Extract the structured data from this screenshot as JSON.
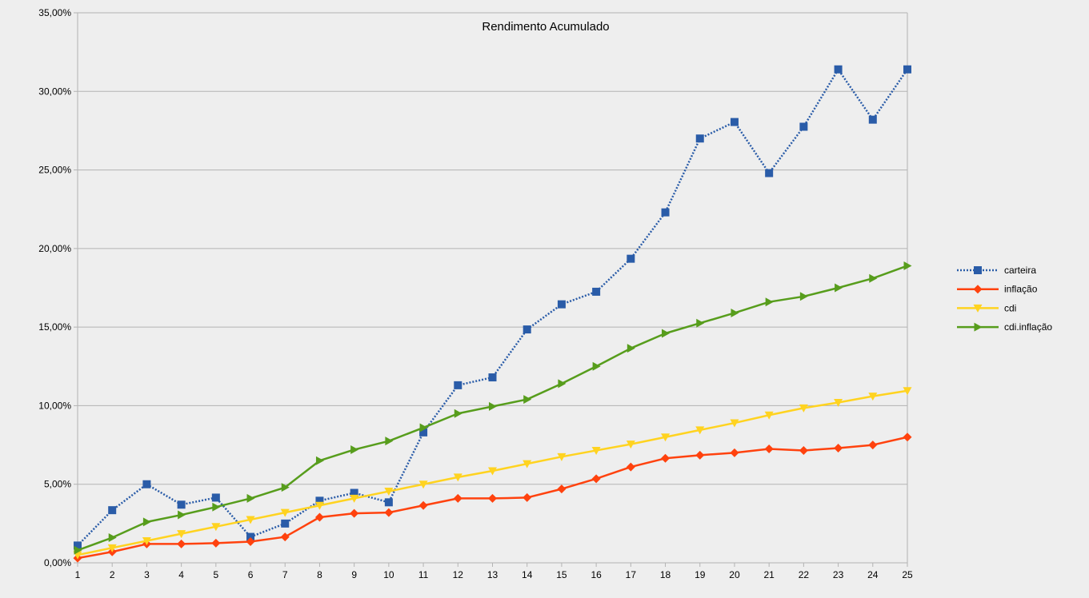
{
  "chart_data": {
    "type": "line",
    "title": "Rendimento Acumulado",
    "xlabel": "",
    "ylabel": "",
    "x": [
      "1",
      "2",
      "3",
      "4",
      "5",
      "6",
      "7",
      "8",
      "9",
      "10",
      "11",
      "12",
      "13",
      "14",
      "15",
      "16",
      "17",
      "18",
      "19",
      "20",
      "21",
      "22",
      "23",
      "24",
      "25"
    ],
    "ylim": [
      0,
      35
    ],
    "yticks": [
      "0,00%",
      "5,00%",
      "10,00%",
      "15,00%",
      "20,00%",
      "25,00%",
      "30,00%",
      "35,00%"
    ],
    "grid": true,
    "legend_position": "right",
    "series": [
      {
        "name": "carteira",
        "color": "#2a5ca8",
        "line_style": "dotted",
        "marker": "square",
        "values": [
          1.1,
          3.35,
          5.0,
          3.7,
          4.15,
          1.65,
          2.5,
          3.95,
          4.45,
          3.85,
          8.3,
          11.3,
          11.8,
          14.85,
          16.45,
          17.25,
          19.35,
          22.3,
          27.0,
          28.05,
          24.8,
          27.75,
          31.4,
          28.2,
          31.4
        ]
      },
      {
        "name": "inflação",
        "color": "#ff420e",
        "line_style": "solid",
        "marker": "diamond",
        "values": [
          0.3,
          0.7,
          1.2,
          1.2,
          1.25,
          1.35,
          1.65,
          2.9,
          3.15,
          3.2,
          3.65,
          4.1,
          4.1,
          4.15,
          4.7,
          5.35,
          6.1,
          6.65,
          6.85,
          7.0,
          7.25,
          7.15,
          7.3,
          7.5,
          8.0
        ]
      },
      {
        "name": "cdi",
        "color": "#ffd320",
        "line_style": "solid",
        "marker": "triangle-down",
        "values": [
          0.5,
          0.95,
          1.4,
          1.85,
          2.3,
          2.75,
          3.2,
          3.65,
          4.1,
          4.55,
          5.0,
          5.45,
          5.85,
          6.3,
          6.75,
          7.15,
          7.55,
          8.0,
          8.45,
          8.9,
          9.4,
          9.85,
          10.2,
          10.6,
          10.95
        ]
      },
      {
        "name": "cdi.inflação",
        "color": "#579d1c",
        "line_style": "solid",
        "marker": "triangle-right",
        "values": [
          0.8,
          1.6,
          2.6,
          3.05,
          3.55,
          4.1,
          4.8,
          6.5,
          7.2,
          7.75,
          8.6,
          9.5,
          9.95,
          10.4,
          11.4,
          12.5,
          13.65,
          14.6,
          15.25,
          15.9,
          16.6,
          16.95,
          17.5,
          18.1,
          18.9
        ]
      }
    ]
  }
}
